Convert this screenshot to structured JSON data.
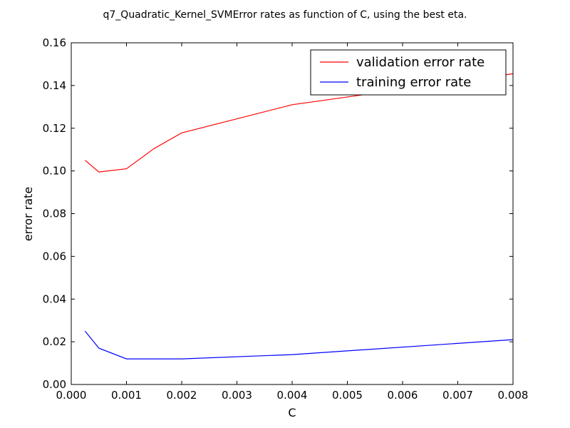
{
  "chart_data": {
    "type": "line",
    "title": "q7_Quadratic_Kernel_SVMError rates as function of C, using the best eta.",
    "xlabel": "C",
    "ylabel": "error rate",
    "xlim": [
      0,
      0.008
    ],
    "ylim": [
      0,
      0.16
    ],
    "xticks": [
      0.0,
      0.001,
      0.002,
      0.003,
      0.004,
      0.005,
      0.006,
      0.007,
      0.008
    ],
    "xtick_labels": [
      "0.000",
      "0.001",
      "0.002",
      "0.003",
      "0.004",
      "0.005",
      "0.006",
      "0.007",
      "0.008"
    ],
    "yticks": [
      0.0,
      0.02,
      0.04,
      0.06,
      0.08,
      0.1,
      0.12,
      0.14,
      0.16
    ],
    "ytick_labels": [
      "0.00",
      "0.02",
      "0.04",
      "0.06",
      "0.08",
      "0.10",
      "0.12",
      "0.14",
      "0.16"
    ],
    "grid": false,
    "legend_position": "top-right",
    "series": [
      {
        "name": "validation error rate",
        "color": "#ff0000",
        "x": [
          0.00025,
          0.0005,
          0.001,
          0.0015,
          0.002,
          0.004,
          0.008
        ],
        "y": [
          0.105,
          0.0995,
          0.101,
          0.1105,
          0.1178,
          0.131,
          0.1455
        ]
      },
      {
        "name": "training error rate",
        "color": "#0000ff",
        "x": [
          0.00025,
          0.0005,
          0.001,
          0.0015,
          0.002,
          0.004,
          0.008
        ],
        "y": [
          0.025,
          0.017,
          0.012,
          0.012,
          0.012,
          0.014,
          0.021
        ]
      }
    ]
  }
}
